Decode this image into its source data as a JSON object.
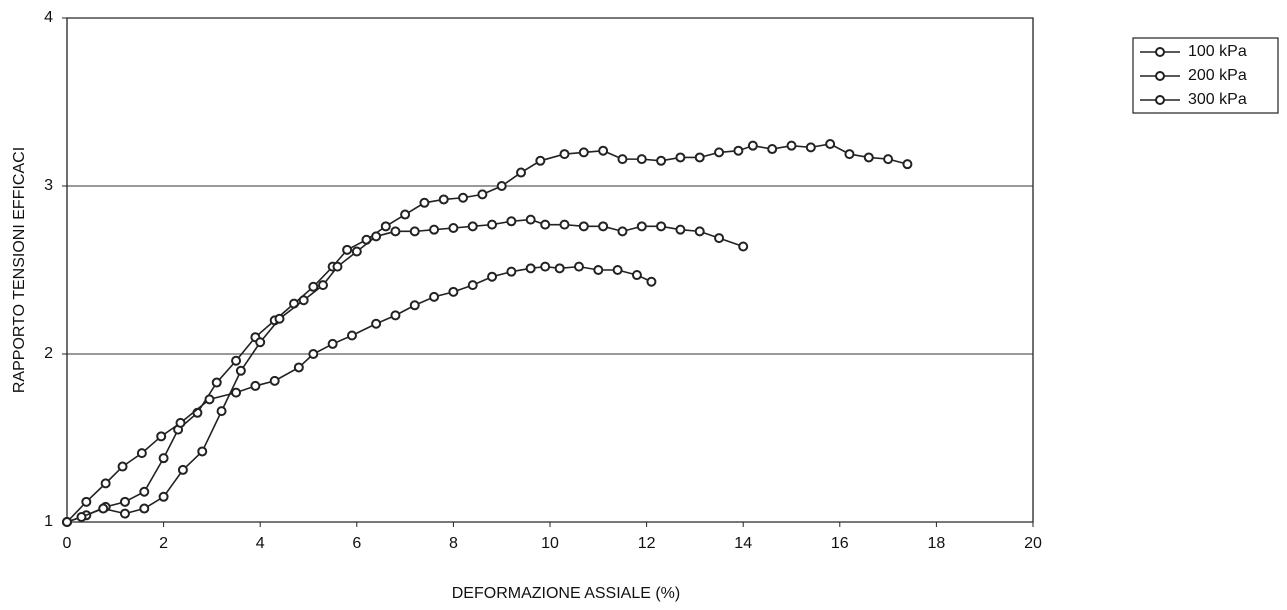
{
  "chart_data": {
    "type": "line",
    "xlabel": "DEFORMAZIONE ASSIALE (%)",
    "ylabel": "RAPPORTO TENSIONI EFFICACI",
    "xlim": [
      0,
      20
    ],
    "xticks": [
      0,
      2,
      4,
      6,
      8,
      10,
      12,
      14,
      16,
      18,
      20
    ],
    "ylim": [
      1,
      4
    ],
    "yticks": [
      1,
      2,
      3,
      4
    ],
    "grid": true,
    "legend": "upper right",
    "series": [
      {
        "name": "100 kPa",
        "color": "#222222",
        "x": [
          0,
          0.4,
          0.8,
          1.2,
          1.6,
          2.0,
          2.3,
          2.7,
          3.1,
          3.5,
          3.9,
          4.3,
          4.7,
          5.1,
          5.5,
          5.8,
          6.2,
          6.6,
          7.0,
          7.4,
          7.8,
          8.2,
          8.6,
          9.0,
          9.4,
          9.8,
          10.3,
          10.7,
          11.1,
          11.5,
          11.9,
          12.3,
          12.7,
          13.1,
          13.5,
          13.9,
          14.2,
          14.6,
          15.0,
          15.4,
          15.8,
          16.2,
          16.6,
          17.0,
          17.4
        ],
        "values": [
          1,
          1.04,
          1.09,
          1.12,
          1.18,
          1.38,
          1.55,
          1.65,
          1.83,
          1.96,
          2.1,
          2.2,
          2.3,
          2.4,
          2.52,
          2.62,
          2.68,
          2.76,
          2.83,
          2.9,
          2.92,
          2.93,
          2.95,
          3.0,
          3.08,
          3.15,
          3.19,
          3.2,
          3.21,
          3.16,
          3.16,
          3.15,
          3.17,
          3.17,
          3.2,
          3.21,
          3.24,
          3.22,
          3.24,
          3.23,
          3.25,
          3.19,
          3.17,
          3.16,
          3.13
        ]
      },
      {
        "name": "200 kPa",
        "color": "#222222",
        "x": [
          0,
          0.3,
          0.75,
          1.2,
          1.6,
          2.0,
          2.4,
          2.8,
          3.2,
          3.6,
          4.0,
          4.4,
          4.9,
          5.3,
          5.6,
          6.0,
          6.4,
          6.8,
          7.2,
          7.6,
          8.0,
          8.4,
          8.8,
          9.2,
          9.6,
          9.9,
          10.3,
          10.7,
          11.1,
          11.5,
          11.9,
          12.3,
          12.7,
          13.1,
          13.5,
          14.0
        ],
        "values": [
          1,
          1.03,
          1.08,
          1.05,
          1.08,
          1.15,
          1.31,
          1.42,
          1.66,
          1.9,
          2.07,
          2.21,
          2.32,
          2.41,
          2.52,
          2.61,
          2.7,
          2.73,
          2.73,
          2.74,
          2.75,
          2.76,
          2.77,
          2.79,
          2.8,
          2.77,
          2.77,
          2.76,
          2.76,
          2.73,
          2.76,
          2.76,
          2.74,
          2.73,
          2.69,
          2.64
        ]
      },
      {
        "name": "300 kPa",
        "color": "#222222",
        "x": [
          0,
          0.4,
          0.8,
          1.15,
          1.55,
          1.95,
          2.35,
          2.95,
          3.5,
          3.9,
          4.3,
          4.8,
          5.1,
          5.5,
          5.9,
          6.4,
          6.8,
          7.2,
          7.6,
          8.0,
          8.4,
          8.8,
          9.2,
          9.6,
          9.9,
          10.2,
          10.6,
          11.0,
          11.4,
          11.8,
          12.1
        ],
        "values": [
          1,
          1.12,
          1.23,
          1.33,
          1.41,
          1.51,
          1.59,
          1.73,
          1.77,
          1.81,
          1.84,
          1.92,
          2.0,
          2.06,
          2.11,
          2.18,
          2.23,
          2.29,
          2.34,
          2.37,
          2.41,
          2.46,
          2.49,
          2.51,
          2.52,
          2.51,
          2.52,
          2.5,
          2.5,
          2.47,
          2.43
        ]
      }
    ]
  }
}
